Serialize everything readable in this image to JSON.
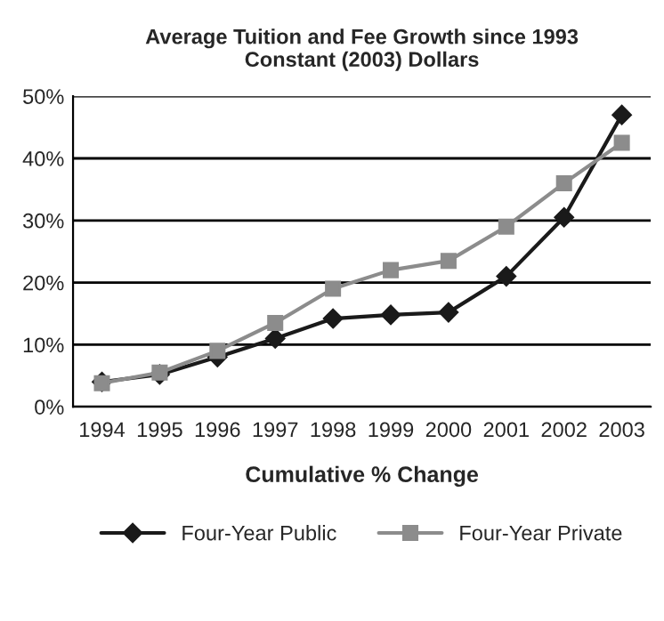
{
  "chart_data": {
    "type": "line",
    "title": "Average Tuition and Fee Growth since 1993\nConstant (2003) Dollars",
    "xlabel": "Cumulative % Change",
    "categories": [
      "1994",
      "1995",
      "1996",
      "1997",
      "1998",
      "1999",
      "2000",
      "2001",
      "2002",
      "2003"
    ],
    "series": [
      {
        "name": "Four-Year Public",
        "color": "#1a1a1a",
        "marker": "diamond",
        "values": [
          4,
          5.2,
          8,
          11,
          14.2,
          14.8,
          15.2,
          21,
          30.5,
          47
        ]
      },
      {
        "name": "Four-Year Private",
        "color": "#8c8c8c",
        "marker": "square",
        "values": [
          3.8,
          5.5,
          9,
          13.5,
          19,
          22,
          23.5,
          29,
          36,
          42.5
        ]
      }
    ],
    "ylim": [
      0,
      50
    ],
    "yticks": [
      {
        "value": 0,
        "label": "0%"
      },
      {
        "value": 10,
        "label": "10%"
      },
      {
        "value": 20,
        "label": "20%"
      },
      {
        "value": 30,
        "label": "30%"
      },
      {
        "value": 40,
        "label": "40%"
      },
      {
        "value": 50,
        "label": "50%"
      }
    ],
    "grid": "y",
    "legend": "bottom",
    "line_style": "solid"
  }
}
